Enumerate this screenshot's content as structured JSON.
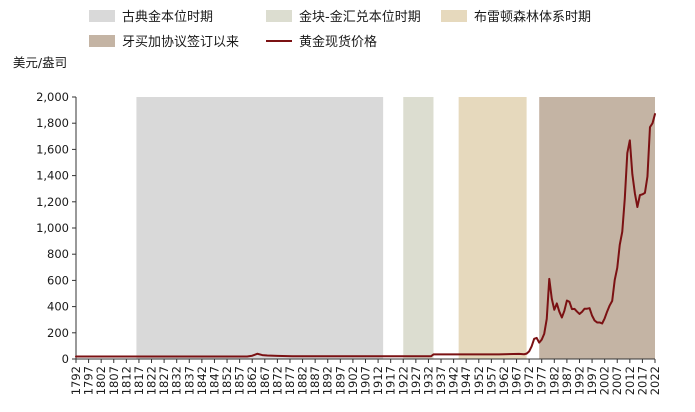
{
  "chart_data": {
    "type": "line",
    "title": "",
    "xlabel": "",
    "ylabel": "美元/盎司",
    "ylim": [
      0,
      2000
    ],
    "xlim": [
      1792,
      2022
    ],
    "y_ticks": [
      "0",
      "200",
      "400",
      "600",
      "800",
      "1,000",
      "1,200",
      "1,400",
      "1,600",
      "1,800",
      "2,000"
    ],
    "x_ticks": [
      "1792",
      "1797",
      "1802",
      "1807",
      "1812",
      "1817",
      "1822",
      "1827",
      "1832",
      "1837",
      "1842",
      "1847",
      "1852",
      "1857",
      "1862",
      "1867",
      "1872",
      "1877",
      "1882",
      "1887",
      "1892",
      "1897",
      "1902",
      "1907",
      "1912",
      "1917",
      "1922",
      "1927",
      "1932",
      "1937",
      "1942",
      "1947",
      "1952",
      "1957",
      "1962",
      "1967",
      "1972",
      "1977",
      "1982",
      "1987",
      "1992",
      "1997",
      "2002",
      "2007",
      "2012",
      "2017",
      "2022"
    ],
    "grid": false,
    "legend_placement": "top",
    "periods": [
      {
        "name": "古典金本位时期",
        "start": 1816,
        "end": 1914,
        "color": "#d9d9d9"
      },
      {
        "name": "金块-金汇兑本位时期",
        "start": 1922,
        "end": 1934,
        "color": "#dcddd0"
      },
      {
        "name": "布雷顿森林体系时期",
        "start": 1944,
        "end": 1971,
        "color": "#e6d9bd"
      },
      {
        "name": "牙买加协议签订以来",
        "start": 1976,
        "end": 2022,
        "color": "#c4b4a4"
      }
    ],
    "series": [
      {
        "name": "黄金现货价格",
        "color": "#7b1113",
        "points": [
          [
            1792,
            19.4
          ],
          [
            1860,
            19.4
          ],
          [
            1862,
            25
          ],
          [
            1864,
            40
          ],
          [
            1866,
            30
          ],
          [
            1868,
            27
          ],
          [
            1872,
            24
          ],
          [
            1878,
            20.7
          ],
          [
            1933,
            20.7
          ],
          [
            1934,
            35
          ],
          [
            1960,
            35
          ],
          [
            1968,
            39
          ],
          [
            1970,
            36
          ],
          [
            1971,
            41
          ],
          [
            1972,
            58
          ],
          [
            1973,
            97
          ],
          [
            1974,
            154
          ],
          [
            1975,
            161
          ],
          [
            1976,
            125
          ],
          [
            1977,
            148
          ],
          [
            1978,
            193
          ],
          [
            1979,
            306
          ],
          [
            1980,
            612
          ],
          [
            1981,
            460
          ],
          [
            1982,
            376
          ],
          [
            1983,
            424
          ],
          [
            1984,
            361
          ],
          [
            1985,
            317
          ],
          [
            1986,
            368
          ],
          [
            1987,
            446
          ],
          [
            1988,
            437
          ],
          [
            1989,
            381
          ],
          [
            1990,
            383
          ],
          [
            1991,
            362
          ],
          [
            1992,
            344
          ],
          [
            1993,
            360
          ],
          [
            1994,
            384
          ],
          [
            1995,
            384
          ],
          [
            1996,
            388
          ],
          [
            1997,
            331
          ],
          [
            1998,
            294
          ],
          [
            1999,
            279
          ],
          [
            2000,
            279
          ],
          [
            2001,
            271
          ],
          [
            2002,
            310
          ],
          [
            2003,
            363
          ],
          [
            2004,
            409
          ],
          [
            2005,
            444
          ],
          [
            2006,
            603
          ],
          [
            2007,
            695
          ],
          [
            2008,
            872
          ],
          [
            2009,
            972
          ],
          [
            2010,
            1225
          ],
          [
            2011,
            1572
          ],
          [
            2012,
            1669
          ],
          [
            2013,
            1411
          ],
          [
            2014,
            1266
          ],
          [
            2015,
            1160
          ],
          [
            2016,
            1251
          ],
          [
            2017,
            1257
          ],
          [
            2018,
            1268
          ],
          [
            2019,
            1393
          ],
          [
            2020,
            1770
          ],
          [
            2021,
            1799
          ],
          [
            2022,
            1870
          ]
        ]
      }
    ]
  }
}
